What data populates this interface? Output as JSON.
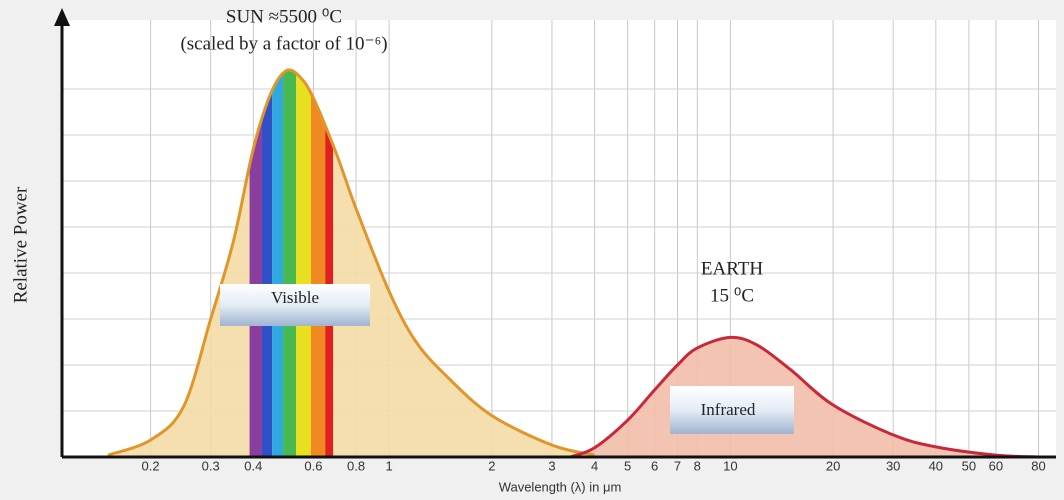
{
  "chart_data": {
    "type": "line",
    "ylabel": "Relative Power",
    "xlabel": "Wavelength (λ) in μm",
    "xscale": "log",
    "xlim": [
      0.11,
      90
    ],
    "ylim": [
      0,
      9
    ],
    "xticks": [
      0.2,
      0.3,
      0.4,
      0.6,
      0.8,
      1,
      2,
      3,
      4,
      5,
      6,
      7,
      8,
      10,
      20,
      30,
      40,
      50,
      60,
      80
    ],
    "yticks": [
      1,
      2,
      3,
      4,
      5,
      6,
      7,
      8
    ],
    "grid": true,
    "series": [
      {
        "name": "SUN ≈5500 ⁰C",
        "subtitle": "(scaled by a factor of 10⁻⁶)",
        "color": "#e0962a",
        "fill": "#f5dba6",
        "label_box": "Visible",
        "x": [
          0.15,
          0.2,
          0.25,
          0.3,
          0.35,
          0.4,
          0.45,
          0.5,
          0.55,
          0.6,
          0.7,
          0.8,
          1,
          1.2,
          1.5,
          2,
          3,
          4
        ],
        "values": [
          0.04,
          0.37,
          1.1,
          3.0,
          4.7,
          6.7,
          7.9,
          8.4,
          8.25,
          7.8,
          6.6,
          5.4,
          3.6,
          2.5,
          1.7,
          0.9,
          0.26,
          0.04
        ]
      },
      {
        "name": "EARTH",
        "subtitle": "15 ⁰C",
        "color": "#c8283a",
        "fill": "#f2bea8",
        "label_box": "Infrared",
        "x": [
          3.4,
          4,
          5,
          6,
          7,
          8,
          10,
          12,
          15,
          20,
          30,
          40,
          60,
          80
        ],
        "values": [
          0,
          0.2,
          0.8,
          1.46,
          2.0,
          2.37,
          2.6,
          2.43,
          1.9,
          1.13,
          0.48,
          0.22,
          0.04,
          0
        ]
      }
    ],
    "visible_bands": {
      "edges": [
        0.39,
        0.424,
        0.454,
        0.489,
        0.534,
        0.59,
        0.65,
        0.685
      ],
      "colors": [
        "#8a3fa0",
        "#3050c8",
        "#30a8e0",
        "#48b850",
        "#e8e020",
        "#f08a20",
        "#e02020"
      ]
    }
  }
}
